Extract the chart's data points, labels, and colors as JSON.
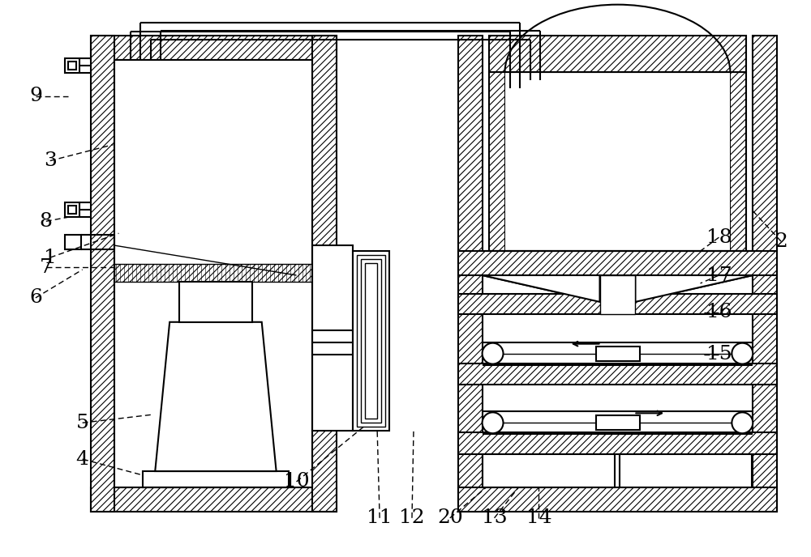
{
  "bg_color": "#ffffff",
  "line_color": "#000000",
  "fig_width": 10.0,
  "fig_height": 6.88,
  "lw_main": 1.5,
  "lw_thin": 1.0,
  "hatch_density": "////"
}
